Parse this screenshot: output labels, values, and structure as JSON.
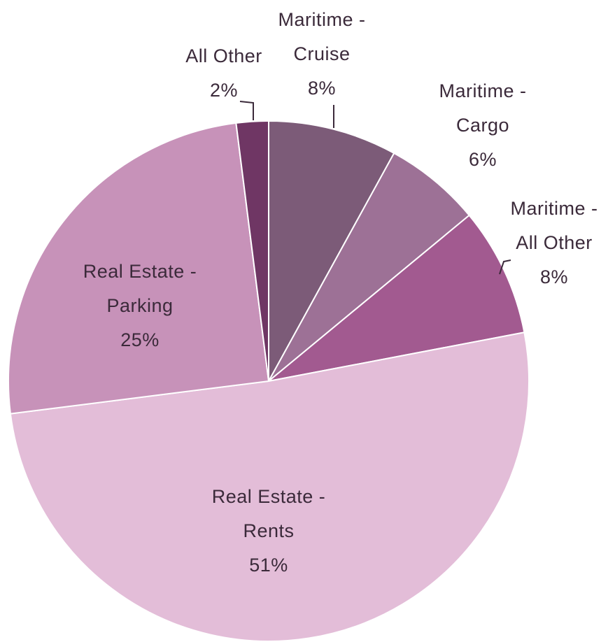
{
  "chart_data": {
    "type": "pie",
    "categories": [
      "Maritime - Cruise",
      "Maritime - Cargo",
      "Maritime - All Other",
      "Real Estate - Rents",
      "Real Estate - Parking",
      "All Other"
    ],
    "values": [
      8,
      6,
      8,
      51,
      25,
      2
    ],
    "value_labels": [
      "8%",
      "6%",
      "8%",
      "51%",
      "25%",
      "2%"
    ],
    "colors": [
      "#7c5b78",
      "#9d7196",
      "#a25a90",
      "#e3bdd8",
      "#c792b9",
      "#6f3664"
    ]
  }
}
